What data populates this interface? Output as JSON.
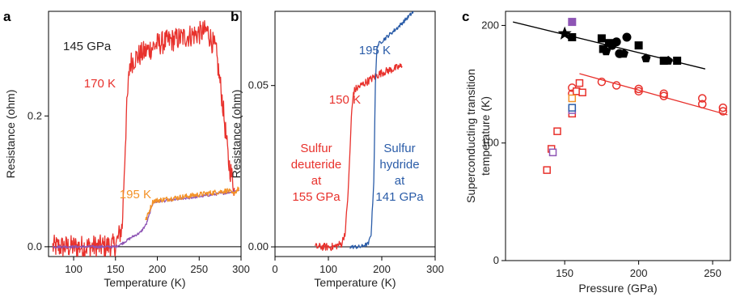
{
  "chart_data": [
    {
      "panel": "a",
      "type": "line",
      "xlabel": "Temperature (K)",
      "ylabel": "Resistance (ohm)",
      "xlim": [
        70,
        300
      ],
      "ylim": [
        -0.015,
        0.36
      ],
      "xticks": [
        100,
        150,
        200,
        250,
        300
      ],
      "yticks": [
        0.0,
        0.2
      ],
      "ytick_labels": [
        "0.0",
        "0.2"
      ],
      "annotations": [
        {
          "text": "145 GPa",
          "color": "#222222"
        },
        {
          "text": "170 K",
          "color": "#e8312c"
        },
        {
          "text": "195 K",
          "color": "#f39228"
        }
      ],
      "series": [
        {
          "color": "#e8312c",
          "x": [
            75,
            100,
            130,
            150,
            158,
            163,
            167,
            175,
            200,
            230,
            260,
            270,
            278,
            285,
            292
          ],
          "y": [
            0.0,
            0.0,
            0.0,
            0.002,
            0.03,
            0.2,
            0.28,
            0.29,
            0.31,
            0.32,
            0.33,
            0.3,
            0.22,
            0.13,
            0.09
          ],
          "noise": 0.018
        },
        {
          "color": "#8e55b5",
          "x": [
            75,
            150,
            158,
            170,
            180,
            187,
            195,
            240,
            285,
            298
          ],
          "y": [
            0.0,
            0.0,
            0.005,
            0.015,
            0.022,
            0.035,
            0.068,
            0.075,
            0.083,
            0.087
          ],
          "noise": 0.002
        },
        {
          "color": "#f39228",
          "x": [
            186,
            195,
            240,
            285,
            290,
            298
          ],
          "y": [
            0.04,
            0.07,
            0.078,
            0.086,
            0.08,
            0.09
          ],
          "noise": 0.004
        }
      ]
    },
    {
      "panel": "b",
      "type": "line",
      "xlabel": "Temperature (K)",
      "ylabel": "Resistance (ohm)",
      "xlim": [
        0,
        300
      ],
      "ylim": [
        -0.003,
        0.073
      ],
      "xticks": [
        0,
        100,
        200,
        300
      ],
      "yticks": [
        0.0,
        0.05
      ],
      "ytick_labels": [
        "0.00",
        "0.05"
      ],
      "annotations": [
        {
          "text": "195 K",
          "color": "#2a5ca8"
        },
        {
          "text": "150 K",
          "color": "#e8312c"
        },
        {
          "text": "Sulfur",
          "color": "#e8312c"
        },
        {
          "text": "deuteride",
          "color": "#e8312c"
        },
        {
          "text": "at",
          "color": "#e8312c"
        },
        {
          "text": "155 GPa",
          "color": "#e8312c"
        },
        {
          "text": "Sulfur",
          "color": "#2a5ca8"
        },
        {
          "text": "hydride",
          "color": "#2a5ca8"
        },
        {
          "text": "at",
          "color": "#2a5ca8"
        },
        {
          "text": "141 GPa",
          "color": "#2a5ca8"
        }
      ],
      "series": [
        {
          "name": "Sulfur deuteride at 155 GPa",
          "color": "#e8312c",
          "x": [
            75,
            110,
            125,
            132,
            138,
            143,
            147,
            152,
            170,
            200,
            238
          ],
          "y": [
            0.0,
            0.0,
            0.001,
            0.005,
            0.02,
            0.04,
            0.048,
            0.049,
            0.051,
            0.054,
            0.056
          ],
          "noise": 0.0012
        },
        {
          "name": "Sulfur hydride at 141 GPa",
          "color": "#2a5ca8",
          "x": [
            140,
            160,
            175,
            180,
            185,
            188,
            191,
            195,
            230,
            260,
            280
          ],
          "y": [
            0.0,
            0.0,
            0.001,
            0.004,
            0.02,
            0.05,
            0.062,
            0.063,
            0.068,
            0.073,
            0.077
          ],
          "noise": 0.0006
        }
      ]
    },
    {
      "panel": "c",
      "type": "scatter",
      "xlabel": "Pressure (GPa)",
      "ylabel": "Superconducting transition temperature (K)",
      "xlim": [
        110,
        262
      ],
      "ylim": [
        0,
        212
      ],
      "xticks": [
        150,
        200,
        250
      ],
      "yticks": [
        0,
        100,
        200
      ],
      "series": [
        {
          "marker": "square-filled",
          "color": "#000000",
          "points": [
            [
              155,
              190
            ],
            [
              175,
              189
            ],
            [
              176,
              180
            ],
            [
              180,
              185
            ],
            [
              200,
              183
            ],
            [
              217,
              170
            ],
            [
              226,
              170
            ]
          ]
        },
        {
          "marker": "circle-filled",
          "color": "#000000",
          "points": [
            [
              182,
              183
            ],
            [
              185,
              186
            ],
            [
              192,
              190
            ],
            [
              187,
              176
            ]
          ]
        },
        {
          "marker": "pentagon-filled",
          "color": "#000000",
          "points": [
            [
              178,
              178
            ],
            [
              190,
              176
            ],
            [
              205,
              172
            ],
            [
              220,
              170
            ]
          ]
        },
        {
          "marker": "star-filled",
          "color": "#000000",
          "points": [
            [
              150,
              193
            ]
          ]
        },
        {
          "marker": "square-filled",
          "color": "#8e55b5",
          "points": [
            [
              155,
              203
            ]
          ]
        },
        {
          "marker": "circle-open",
          "color": "#e8312c",
          "points": [
            [
              155,
              147
            ],
            [
              155,
              142
            ],
            [
              175,
              152
            ],
            [
              185,
              149
            ],
            [
              200,
              146
            ],
            [
              200,
              144
            ],
            [
              217,
              142
            ],
            [
              217,
              140
            ],
            [
              243,
              138
            ],
            [
              243,
              133
            ],
            [
              257,
              130
            ],
            [
              257,
              127
            ]
          ]
        },
        {
          "marker": "square-open",
          "color": "#e8312c",
          "points": [
            [
              138,
              77
            ],
            [
              141,
              95
            ],
            [
              145,
              110
            ],
            [
              155,
              125
            ],
            [
              158,
              144
            ],
            [
              160,
              151
            ],
            [
              162,
              143
            ]
          ]
        },
        {
          "marker": "square-open",
          "color": "#f39228",
          "points": [
            [
              155,
              138
            ]
          ]
        },
        {
          "marker": "square-open",
          "color": "#8e55b5",
          "points": [
            [
              142,
              92
            ],
            [
              155,
              128
            ]
          ]
        },
        {
          "marker": "square-open",
          "color": "#2a5ca8",
          "points": [
            [
              155,
              130
            ]
          ]
        }
      ],
      "fit_lines": [
        {
          "color": "#000000",
          "x": [
            115,
            245
          ],
          "y": [
            203,
            163
          ]
        },
        {
          "color": "#e8312c",
          "x": [
            160,
            260
          ],
          "y": [
            159,
            124
          ]
        }
      ]
    }
  ]
}
